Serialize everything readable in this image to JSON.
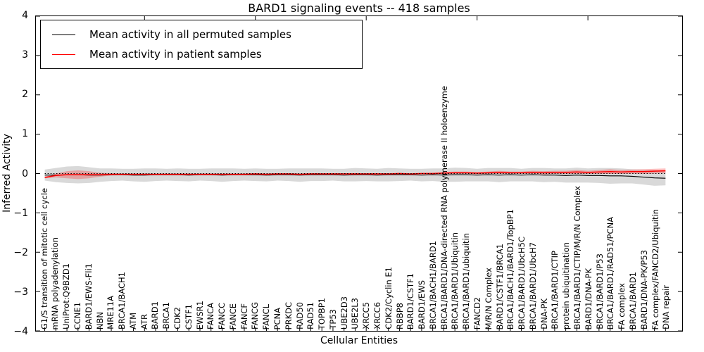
{
  "title": "BARD1 signaling events -- 418 samples",
  "legend": {
    "entries": [
      {
        "label": "Mean activity in all permuted samples",
        "color": "#000000"
      },
      {
        "label": "Mean activity in patient samples",
        "color": "#ff0000"
      }
    ]
  },
  "chart_data": {
    "type": "line",
    "title": "BARD1 signaling events -- 418 samples",
    "xlabel": "Cellular Entities",
    "ylabel": "Inferred Activity",
    "ylim": [
      -4,
      4
    ],
    "yticks": [
      "4",
      "3",
      "2",
      "1",
      "0",
      "−1",
      "−2",
      "−3",
      "−4"
    ],
    "grid": false,
    "legend_position": "upper left",
    "zero_line": true,
    "categories": [
      "G1/S transition of mitotic cell cycle",
      "mRNA polyadenylation",
      "UniProt:Q9BZD1",
      "CCNE1",
      "BARD1/EWS-Fli1",
      "NBN",
      "MRE11A",
      "BRCA1/BACH1",
      "ATM",
      "ATR",
      "BARD1",
      "BRCA1",
      "CDK2",
      "CSTF1",
      "EWSR1",
      "FANCA",
      "FANCC",
      "FANCE",
      "FANCF",
      "FANCG",
      "FANCL",
      "PCNA",
      "PRKDC",
      "RAD50",
      "RAD51",
      "TOPBP1",
      "TP53",
      "UBE2D3",
      "UBE2L3",
      "XRCC5",
      "XRCC6",
      "CDK2/Cyclin E1",
      "RBBP8",
      "BARD1/CSTF1",
      "BARD1/EWS",
      "BRCA1/BACH1/BARD1",
      "BRCA1/BARD1/DNA-directed RNA polymerase II holoenzyme",
      "BRCA1/BARD1/Ubiquitin",
      "BRCA1/BARD1/ubiquitin",
      "FANCD2",
      "M/R/N Complex",
      "BARD1/CSTF1/BRCA1",
      "BRCA1/BACH1/BARD1/TopBP1",
      "BRCA1/BARD1/UbcH5C",
      "BRCA1/BARD1/UbcH7",
      "DNA-PK",
      "BRCA1/BARD1/CTIP",
      "protein ubiquitination",
      "BRCA1/BARD1/CTIP/M/R/N Complex",
      "BARD1/DNA-PK",
      "BRCA1/BARD1/P53",
      "BRCA1/BARD1/RAD51/PCNA",
      "FA complex",
      "BRCA1/BARD1",
      "BARD1/DNA-PK/P53",
      "FA complex/FANCD2/Ubiquitin",
      "DNA repair"
    ],
    "series": [
      {
        "name": "Mean activity in all permuted samples",
        "color": "#000000",
        "band_color": "rgba(0,0,0,0.15)",
        "values": [
          -0.04,
          -0.04,
          -0.03,
          -0.03,
          -0.04,
          -0.04,
          -0.03,
          -0.03,
          -0.04,
          -0.04,
          -0.03,
          -0.03,
          -0.03,
          -0.04,
          -0.03,
          -0.03,
          -0.04,
          -0.03,
          -0.03,
          -0.03,
          -0.04,
          -0.03,
          -0.03,
          -0.04,
          -0.03,
          -0.03,
          -0.03,
          -0.04,
          -0.03,
          -0.03,
          -0.04,
          -0.03,
          -0.03,
          -0.03,
          -0.04,
          -0.03,
          -0.04,
          -0.03,
          -0.03,
          -0.04,
          -0.03,
          -0.04,
          -0.03,
          -0.04,
          -0.03,
          -0.04,
          -0.04,
          -0.05,
          -0.04,
          -0.05,
          -0.05,
          -0.06,
          -0.06,
          -0.07,
          -0.09,
          -0.11,
          -0.12
        ],
        "band": [
          0.14,
          0.18,
          0.21,
          0.22,
          0.2,
          0.17,
          0.16,
          0.15,
          0.16,
          0.17,
          0.16,
          0.15,
          0.16,
          0.16,
          0.15,
          0.16,
          0.17,
          0.16,
          0.15,
          0.16,
          0.16,
          0.15,
          0.16,
          0.17,
          0.16,
          0.16,
          0.15,
          0.16,
          0.17,
          0.16,
          0.16,
          0.17,
          0.16,
          0.15,
          0.16,
          0.16,
          0.17,
          0.18,
          0.17,
          0.16,
          0.17,
          0.18,
          0.17,
          0.16,
          0.17,
          0.18,
          0.17,
          0.18,
          0.19,
          0.18,
          0.19,
          0.2,
          0.19,
          0.18,
          0.19,
          0.2,
          0.18
        ]
      },
      {
        "name": "Mean activity in patient samples",
        "color": "#ff0000",
        "band_color": "rgba(255,0,0,0.25)",
        "values": [
          -0.1,
          -0.05,
          -0.03,
          -0.03,
          -0.03,
          -0.03,
          -0.02,
          -0.02,
          -0.02,
          -0.02,
          -0.02,
          -0.02,
          -0.02,
          -0.02,
          -0.02,
          -0.02,
          -0.02,
          -0.02,
          -0.02,
          -0.01,
          -0.02,
          -0.01,
          -0.01,
          -0.02,
          -0.01,
          -0.01,
          -0.01,
          -0.01,
          -0.01,
          -0.01,
          -0.01,
          -0.01,
          0.0,
          -0.01,
          0.0,
          0.0,
          0.01,
          0.02,
          0.02,
          0.01,
          0.02,
          0.03,
          0.02,
          0.02,
          0.03,
          0.02,
          0.03,
          0.03,
          0.04,
          0.03,
          0.04,
          0.05,
          0.04,
          0.05,
          0.05,
          0.06,
          0.07
        ],
        "band": [
          0.02,
          0.05,
          0.09,
          0.11,
          0.09,
          0.05,
          0.03,
          0.02,
          0.02,
          0.02,
          0.02,
          0.02,
          0.02,
          0.02,
          0.02,
          0.02,
          0.02,
          0.02,
          0.02,
          0.02,
          0.02,
          0.02,
          0.02,
          0.02,
          0.02,
          0.02,
          0.02,
          0.02,
          0.02,
          0.02,
          0.02,
          0.02,
          0.02,
          0.02,
          0.02,
          0.02,
          0.03,
          0.03,
          0.03,
          0.03,
          0.03,
          0.04,
          0.03,
          0.03,
          0.04,
          0.04,
          0.04,
          0.04,
          0.05,
          0.04,
          0.05,
          0.06,
          0.05,
          0.05,
          0.06,
          0.06,
          0.06
        ]
      }
    ]
  }
}
